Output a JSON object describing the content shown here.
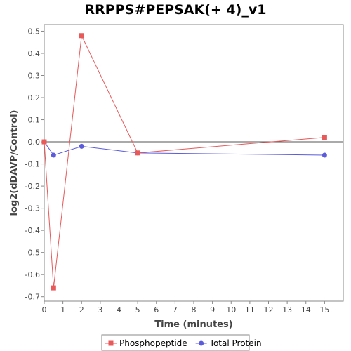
{
  "chart_data": {
    "type": "line",
    "title": "RRPPS#PEPSAK(+ 4)_v1",
    "xlabel": "Time (minutes)",
    "ylabel": "log2(dDAVP/Control)",
    "xlim": [
      0,
      16
    ],
    "ylim": [
      -0.72,
      0.53
    ],
    "x_ticks": [
      0,
      1,
      2,
      3,
      4,
      5,
      6,
      7,
      8,
      9,
      10,
      11,
      12,
      13,
      14,
      15
    ],
    "y_ticks": [
      -0.7,
      -0.6,
      -0.5,
      -0.4,
      -0.3,
      -0.2,
      -0.1,
      0.0,
      0.1,
      0.2,
      0.3,
      0.4,
      0.5
    ],
    "grid": false,
    "legend_position": "bottom",
    "series": [
      {
        "name": "Phosphopeptide",
        "color": "#e8595a",
        "marker": "square",
        "x": [
          0,
          0.5,
          2,
          5,
          15
        ],
        "y": [
          0.0,
          -0.66,
          0.48,
          -0.05,
          0.02
        ]
      },
      {
        "name": "Total Protein",
        "color": "#5b5bdc",
        "marker": "circle",
        "x": [
          0,
          0.5,
          2,
          5,
          15
        ],
        "y": [
          0.0,
          -0.06,
          -0.02,
          -0.05,
          -0.06
        ]
      }
    ]
  }
}
